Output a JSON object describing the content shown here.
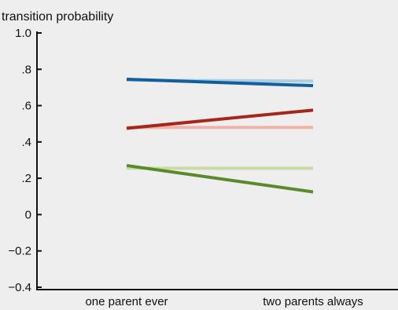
{
  "chart_data": {
    "type": "line",
    "title": "",
    "ylabel": "transition probability",
    "xlabel": "",
    "categories": [
      "one parent ever",
      "two parents always"
    ],
    "y_ticks": [
      "1.0",
      ".8",
      ".6",
      ".4",
      ".2",
      "0",
      "−0.2",
      "−0.4"
    ],
    "y_tick_values": [
      1.0,
      0.8,
      0.6,
      0.4,
      0.2,
      0,
      -0.2,
      -0.4
    ],
    "ylim": [
      -0.4,
      1.0
    ],
    "grid": false,
    "legend": "none",
    "series": [
      {
        "values": [
          0.74,
          0.735
        ],
        "color": "#a9cfe6",
        "style": "light-blue"
      },
      {
        "values": [
          0.745,
          0.71
        ],
        "color": "#135f9c",
        "style": "dark-blue"
      },
      {
        "values": [
          0.48,
          0.48
        ],
        "color": "#f1b3a8",
        "style": "light-red"
      },
      {
        "values": [
          0.475,
          0.575
        ],
        "color": "#a6261c",
        "style": "dark-red"
      },
      {
        "values": [
          0.255,
          0.255
        ],
        "color": "#c7dca5",
        "style": "light-green"
      },
      {
        "values": [
          0.27,
          0.125
        ],
        "color": "#5a8a2c",
        "style": "dark-green"
      }
    ]
  }
}
